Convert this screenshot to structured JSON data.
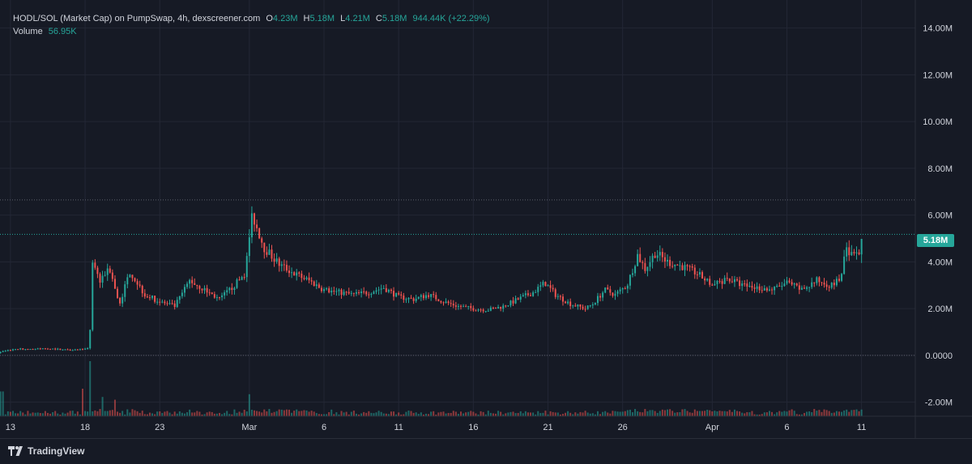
{
  "legend": {
    "title": "HODL/SOL (Market Cap) on PumpSwap, 4h, dexscreener.com",
    "open_label": "O",
    "open_value": "4.23M",
    "high_label": "H",
    "high_value": "5.18M",
    "low_label": "L",
    "low_value": "4.21M",
    "close_label": "C",
    "close_value": "5.18M",
    "change": "944.44K (+22.29%)",
    "volume_label": "Volume",
    "volume_value": "56.95K"
  },
  "last_price_label": "5.18M",
  "brand": {
    "name": "TradingView",
    "icon": "tradingview-logo-icon"
  },
  "colors": {
    "background": "#161a25",
    "grid": "#232735",
    "up": "#26a69a",
    "down": "#ef5350",
    "text": "#d1d4dc"
  },
  "chart_data": {
    "type": "candlestick",
    "title": "HODL/SOL (Market Cap) on PumpSwap, 4h, dexscreener.com",
    "y_ticks": [
      "14.00M",
      "12.00M",
      "10.00M",
      "8.00M",
      "6.00M",
      "4.00M",
      "2.00M",
      "0.0000",
      "-2.00M"
    ],
    "y_tick_values": [
      14,
      12,
      10,
      8,
      6,
      4,
      2,
      0,
      -2
    ],
    "ylim": [
      -2.6,
      15.2
    ],
    "y_unit": "M",
    "x_ticks": [
      "13",
      "18",
      "23",
      "Mar",
      "6",
      "11",
      "16",
      "21",
      "26",
      "Apr",
      "6",
      "11"
    ],
    "x_tick_days": [
      13,
      18,
      23,
      29,
      34,
      39,
      44,
      49,
      54,
      60,
      65,
      70
    ],
    "day_origin": "Feb 13",
    "xlim": [
      12.3,
      73.6
    ],
    "grid": true,
    "last_price": 5.18,
    "reference_levels": [
      6.65,
      0.0
    ],
    "anchors": [
      [
        12.0,
        0.05
      ],
      [
        12.6,
        0.2
      ],
      [
        13.4,
        0.28
      ],
      [
        14.5,
        0.27
      ],
      [
        15.5,
        0.3
      ],
      [
        16.5,
        0.25
      ],
      [
        17.6,
        0.25
      ],
      [
        18.3,
        0.3
      ],
      [
        18.45,
        3.9
      ],
      [
        19.0,
        3.2
      ],
      [
        19.6,
        3.8
      ],
      [
        20.3,
        2.2
      ],
      [
        21.0,
        3.6
      ],
      [
        22.0,
        2.6
      ],
      [
        23.0,
        2.3
      ],
      [
        24.0,
        2.1
      ],
      [
        25.0,
        3.2
      ],
      [
        26.0,
        2.8
      ],
      [
        27.0,
        2.4
      ],
      [
        28.0,
        3.0
      ],
      [
        28.7,
        3.5
      ],
      [
        29.2,
        6.0
      ],
      [
        30.0,
        4.6
      ],
      [
        31.0,
        3.9
      ],
      [
        32.0,
        3.5
      ],
      [
        33.0,
        3.2
      ],
      [
        34.0,
        2.8
      ],
      [
        35.0,
        2.7
      ],
      [
        36.0,
        2.6
      ],
      [
        37.0,
        2.7
      ],
      [
        38.0,
        2.9
      ],
      [
        39.0,
        2.5
      ],
      [
        40.0,
        2.4
      ],
      [
        41.0,
        2.6
      ],
      [
        42.0,
        2.3
      ],
      [
        43.0,
        2.1
      ],
      [
        44.0,
        2.0
      ],
      [
        45.0,
        1.95
      ],
      [
        46.0,
        2.1
      ],
      [
        47.0,
        2.4
      ],
      [
        48.0,
        2.7
      ],
      [
        48.8,
        3.1
      ],
      [
        49.5,
        2.6
      ],
      [
        50.5,
        2.2
      ],
      [
        51.5,
        2.0
      ],
      [
        52.0,
        2.2
      ],
      [
        52.8,
        2.8
      ],
      [
        53.5,
        2.6
      ],
      [
        54.3,
        3.0
      ],
      [
        55.0,
        4.3
      ],
      [
        55.5,
        3.7
      ],
      [
        56.2,
        4.4
      ],
      [
        57.0,
        4.0
      ],
      [
        58.0,
        3.8
      ],
      [
        59.0,
        3.5
      ],
      [
        60.0,
        3.0
      ],
      [
        61.0,
        3.3
      ],
      [
        62.0,
        3.0
      ],
      [
        63.0,
        2.9
      ],
      [
        64.0,
        2.8
      ],
      [
        65.0,
        3.1
      ],
      [
        66.0,
        2.8
      ],
      [
        67.0,
        3.2
      ],
      [
        68.0,
        3.0
      ],
      [
        68.6,
        3.3
      ],
      [
        69.0,
        4.6
      ],
      [
        69.4,
        4.25
      ],
      [
        69.8,
        4.23
      ],
      [
        70.0,
        5.18
      ]
    ],
    "volume_spikes": [
      [
        12.4,
        0.45
      ],
      [
        18.4,
        1.0
      ],
      [
        17.9,
        0.5
      ],
      [
        19.2,
        0.35
      ],
      [
        20.0,
        0.3
      ],
      [
        29.0,
        0.4
      ],
      [
        34.5,
        0.12
      ],
      [
        60.2,
        0.1
      ],
      [
        69.0,
        0.12
      ]
    ]
  }
}
